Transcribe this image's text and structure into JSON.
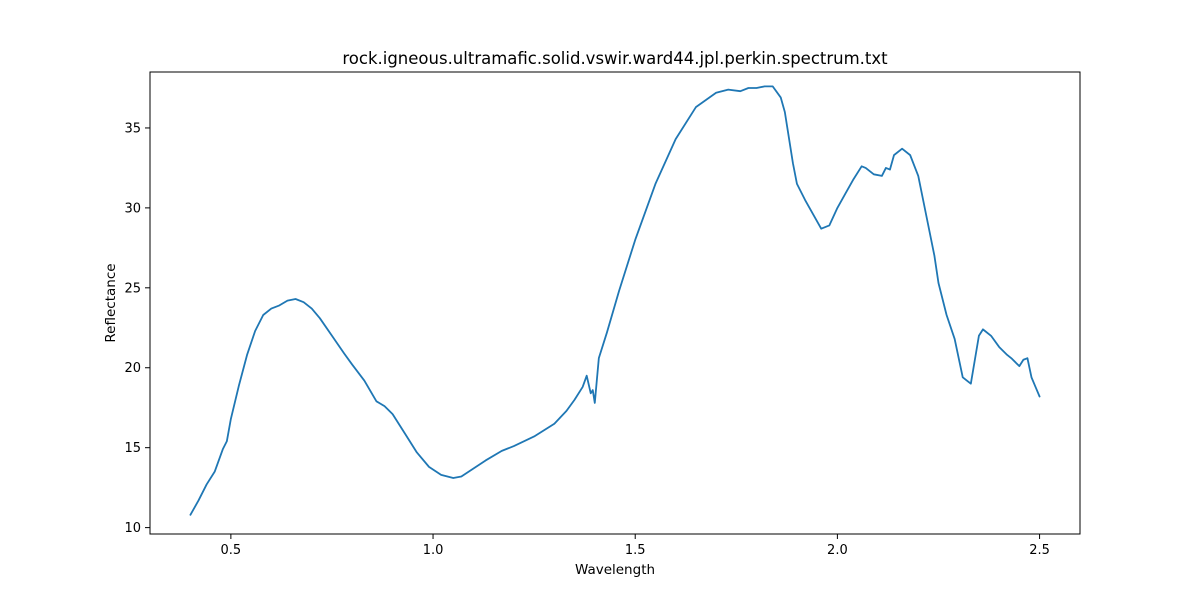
{
  "chart_data": {
    "type": "line",
    "title": "rock.igneous.ultramafic.solid.vswir.ward44.jpl.perkin.spectrum.txt",
    "xlabel": "Wavelength",
    "ylabel": "Reflectance",
    "xlim": [
      0.3,
      2.6
    ],
    "ylim": [
      9.6,
      38.5
    ],
    "xticks": [
      "0.5",
      "1.0",
      "1.5",
      "2.0",
      "2.5"
    ],
    "yticks": [
      "10",
      "15",
      "20",
      "25",
      "30",
      "35"
    ],
    "grid": false,
    "line_color": "#1f77b4",
    "series": [
      {
        "x": [
          0.4,
          0.42,
          0.44,
          0.46,
          0.48,
          0.49,
          0.5,
          0.52,
          0.54,
          0.56,
          0.58,
          0.6,
          0.62,
          0.64,
          0.66,
          0.68,
          0.7,
          0.72,
          0.75,
          0.78,
          0.8,
          0.83,
          0.86,
          0.88,
          0.9,
          0.93,
          0.96,
          0.99,
          1.02,
          1.05,
          1.07,
          1.1,
          1.13,
          1.17,
          1.2,
          1.25,
          1.3,
          1.33,
          1.35,
          1.37,
          1.38,
          1.39,
          1.395,
          1.4,
          1.41,
          1.43,
          1.46,
          1.5,
          1.55,
          1.6,
          1.65,
          1.7,
          1.73,
          1.76,
          1.78,
          1.8,
          1.82,
          1.84,
          1.86,
          1.87,
          1.89,
          1.9,
          1.92,
          1.94,
          1.96,
          1.98,
          2.0,
          2.02,
          2.04,
          2.06,
          2.07,
          2.09,
          2.11,
          2.12,
          2.13,
          2.14,
          2.16,
          2.18,
          2.2,
          2.22,
          2.24,
          2.25,
          2.27,
          2.29,
          2.31,
          2.33,
          2.34,
          2.35,
          2.36,
          2.38,
          2.4,
          2.42,
          2.43,
          2.45,
          2.46,
          2.47,
          2.48,
          2.49,
          2.5
        ],
        "y": [
          10.8,
          11.7,
          12.7,
          13.5,
          14.9,
          15.4,
          16.8,
          18.9,
          20.8,
          22.3,
          23.3,
          23.7,
          23.9,
          24.2,
          24.3,
          24.1,
          23.7,
          23.1,
          22.0,
          20.9,
          20.2,
          19.2,
          17.9,
          17.6,
          17.1,
          15.9,
          14.7,
          13.8,
          13.3,
          13.1,
          13.2,
          13.7,
          14.2,
          14.8,
          15.1,
          15.7,
          16.5,
          17.3,
          18.0,
          18.8,
          19.5,
          18.4,
          18.6,
          17.8,
          20.6,
          22.2,
          24.8,
          28.0,
          31.5,
          34.3,
          36.3,
          37.2,
          37.4,
          37.3,
          37.5,
          37.5,
          37.6,
          37.6,
          36.9,
          36.0,
          32.8,
          31.5,
          30.5,
          29.6,
          28.7,
          28.9,
          30.0,
          30.9,
          31.8,
          32.6,
          32.5,
          32.1,
          32.0,
          32.5,
          32.4,
          33.3,
          33.7,
          33.3,
          32.0,
          29.5,
          27.0,
          25.3,
          23.3,
          21.8,
          19.4,
          19.0,
          20.5,
          22.0,
          22.4,
          22.0,
          21.3,
          20.8,
          20.6,
          20.1,
          20.5,
          20.6,
          19.4,
          18.8,
          18.2
        ]
      }
    ]
  }
}
